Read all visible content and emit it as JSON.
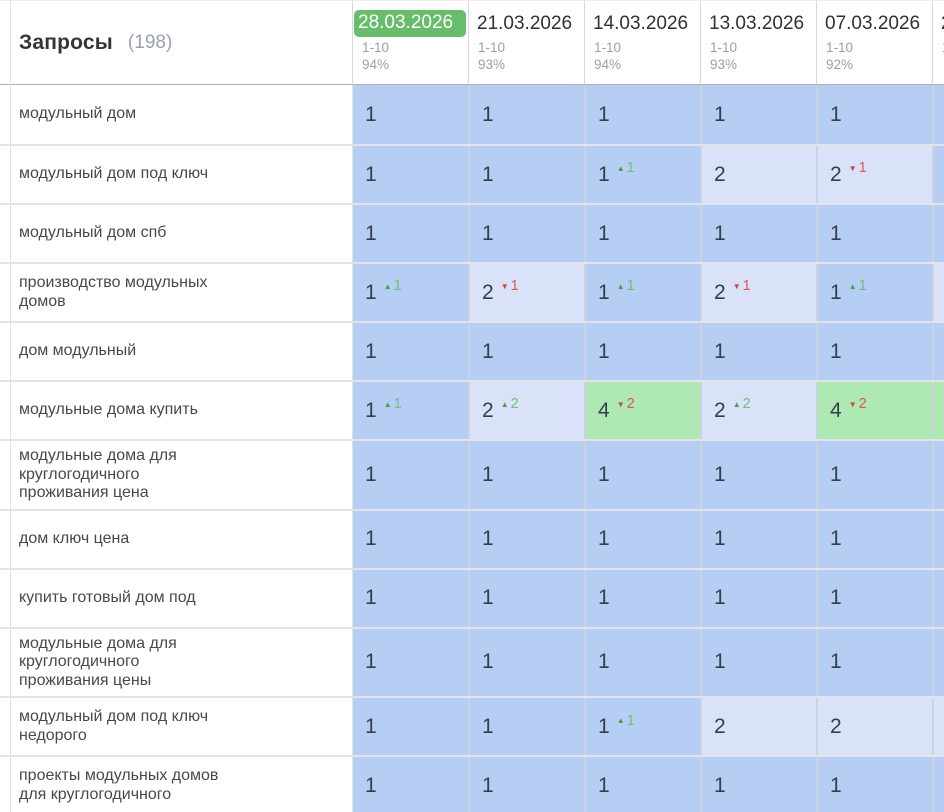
{
  "header": {
    "title": "Запросы",
    "count": "(198)",
    "columns": [
      {
        "date": "28.03.2026",
        "range": "1-10",
        "visibility": "94%",
        "selected": true
      },
      {
        "date": "21.03.2026",
        "range": "1-10",
        "visibility": "93%",
        "selected": false
      },
      {
        "date": "14.03.2026",
        "range": "1-10",
        "visibility": "94%",
        "selected": false
      },
      {
        "date": "13.03.2026",
        "range": "1-10",
        "visibility": "93%",
        "selected": false
      },
      {
        "date": "07.03.2026",
        "range": "1-10",
        "visibility": "92%",
        "selected": false
      },
      {
        "date": "2",
        "range": "1",
        "visibility": "",
        "selected": false
      }
    ]
  },
  "colors": {
    "selected_date_bg": "#67bd6b",
    "position_1_bg": "#b7cef4",
    "position_2_bg": "#d9e2f9",
    "position_4_bg": "#aee9b3",
    "up_change": "#43a047",
    "down_change": "#e2574e"
  },
  "rows": [
    {
      "keyword": "модульный дом",
      "cells": [
        {
          "value": "1",
          "tone": "blue",
          "change": null
        },
        {
          "value": "1",
          "tone": "blue",
          "change": null
        },
        {
          "value": "1",
          "tone": "blue",
          "change": null
        },
        {
          "value": "1",
          "tone": "blue",
          "change": null
        },
        {
          "value": "1",
          "tone": "blue",
          "change": null
        },
        {
          "value": "",
          "tone": "blue",
          "change": null
        }
      ]
    },
    {
      "keyword": "модульный дом под ключ",
      "cells": [
        {
          "value": "1",
          "tone": "blue",
          "change": null
        },
        {
          "value": "1",
          "tone": "blue",
          "change": null
        },
        {
          "value": "1",
          "tone": "blue",
          "change": {
            "dir": "up",
            "amount": "1"
          }
        },
        {
          "value": "2",
          "tone": "light",
          "change": null
        },
        {
          "value": "2",
          "tone": "light",
          "change": {
            "dir": "down",
            "amount": "1"
          }
        },
        {
          "value": "",
          "tone": "blue",
          "change": null
        }
      ]
    },
    {
      "keyword": "модульный дом спб",
      "cells": [
        {
          "value": "1",
          "tone": "blue",
          "change": null
        },
        {
          "value": "1",
          "tone": "blue",
          "change": null
        },
        {
          "value": "1",
          "tone": "blue",
          "change": null
        },
        {
          "value": "1",
          "tone": "blue",
          "change": null
        },
        {
          "value": "1",
          "tone": "blue",
          "change": null
        },
        {
          "value": "",
          "tone": "blue",
          "change": null
        }
      ]
    },
    {
      "keyword": "производство модульных\nдомов",
      "cells": [
        {
          "value": "1",
          "tone": "blue",
          "change": {
            "dir": "up",
            "amount": "1"
          }
        },
        {
          "value": "2",
          "tone": "light",
          "change": {
            "dir": "down",
            "amount": "1"
          }
        },
        {
          "value": "1",
          "tone": "blue",
          "change": {
            "dir": "up",
            "amount": "1"
          }
        },
        {
          "value": "2",
          "tone": "light",
          "change": {
            "dir": "down",
            "amount": "1"
          }
        },
        {
          "value": "1",
          "tone": "blue",
          "change": {
            "dir": "up",
            "amount": "1"
          }
        },
        {
          "value": "",
          "tone": "light",
          "change": null
        }
      ]
    },
    {
      "keyword": "дом модульный",
      "cells": [
        {
          "value": "1",
          "tone": "blue",
          "change": null
        },
        {
          "value": "1",
          "tone": "blue",
          "change": null
        },
        {
          "value": "1",
          "tone": "blue",
          "change": null
        },
        {
          "value": "1",
          "tone": "blue",
          "change": null
        },
        {
          "value": "1",
          "tone": "blue",
          "change": null
        },
        {
          "value": "",
          "tone": "blue",
          "change": null
        }
      ]
    },
    {
      "keyword": "модульные дома купить",
      "cells": [
        {
          "value": "1",
          "tone": "blue",
          "change": {
            "dir": "up",
            "amount": "1"
          }
        },
        {
          "value": "2",
          "tone": "light",
          "change": {
            "dir": "up",
            "amount": "2"
          }
        },
        {
          "value": "4",
          "tone": "green",
          "change": {
            "dir": "down",
            "amount": "2"
          }
        },
        {
          "value": "2",
          "tone": "light",
          "change": {
            "dir": "up",
            "amount": "2"
          }
        },
        {
          "value": "4",
          "tone": "green",
          "change": {
            "dir": "down",
            "amount": "2"
          }
        },
        {
          "value": "",
          "tone": "green",
          "change": null
        }
      ]
    },
    {
      "keyword": "модульные дома для\nкруглогодичного\nпроживания цена",
      "cells": [
        {
          "value": "1",
          "tone": "blue",
          "change": null
        },
        {
          "value": "1",
          "tone": "blue",
          "change": null
        },
        {
          "value": "1",
          "tone": "blue",
          "change": null
        },
        {
          "value": "1",
          "tone": "blue",
          "change": null
        },
        {
          "value": "1",
          "tone": "blue",
          "change": null
        },
        {
          "value": "",
          "tone": "blue",
          "change": null
        }
      ]
    },
    {
      "keyword": "дом ключ цена",
      "cells": [
        {
          "value": "1",
          "tone": "blue",
          "change": null
        },
        {
          "value": "1",
          "tone": "blue",
          "change": null
        },
        {
          "value": "1",
          "tone": "blue",
          "change": null
        },
        {
          "value": "1",
          "tone": "blue",
          "change": null
        },
        {
          "value": "1",
          "tone": "blue",
          "change": null
        },
        {
          "value": "",
          "tone": "blue",
          "change": null
        }
      ]
    },
    {
      "keyword": "купить готовый дом под",
      "cells": [
        {
          "value": "1",
          "tone": "blue",
          "change": null
        },
        {
          "value": "1",
          "tone": "blue",
          "change": null
        },
        {
          "value": "1",
          "tone": "blue",
          "change": null
        },
        {
          "value": "1",
          "tone": "blue",
          "change": null
        },
        {
          "value": "1",
          "tone": "blue",
          "change": null
        },
        {
          "value": "",
          "tone": "blue",
          "change": null
        }
      ]
    },
    {
      "keyword": "модульные дома для\nкруглогодичного\nпроживания цены",
      "cells": [
        {
          "value": "1",
          "tone": "blue",
          "change": null
        },
        {
          "value": "1",
          "tone": "blue",
          "change": null
        },
        {
          "value": "1",
          "tone": "blue",
          "change": null
        },
        {
          "value": "1",
          "tone": "blue",
          "change": null
        },
        {
          "value": "1",
          "tone": "blue",
          "change": null
        },
        {
          "value": "",
          "tone": "blue",
          "change": null
        }
      ]
    },
    {
      "keyword": "модульный дом под ключ\nнедорого",
      "cells": [
        {
          "value": "1",
          "tone": "blue",
          "change": null
        },
        {
          "value": "1",
          "tone": "blue",
          "change": null
        },
        {
          "value": "1",
          "tone": "blue",
          "change": {
            "dir": "up",
            "amount": "1"
          }
        },
        {
          "value": "2",
          "tone": "light",
          "change": null
        },
        {
          "value": "2",
          "tone": "light",
          "change": null
        },
        {
          "value": "",
          "tone": "light",
          "change": null
        }
      ]
    },
    {
      "keyword": "проекты модульных домов\nдля круглогодичного",
      "cells": [
        {
          "value": "1",
          "tone": "blue",
          "change": null
        },
        {
          "value": "1",
          "tone": "blue",
          "change": null
        },
        {
          "value": "1",
          "tone": "blue",
          "change": null
        },
        {
          "value": "1",
          "tone": "blue",
          "change": null
        },
        {
          "value": "1",
          "tone": "blue",
          "change": null
        },
        {
          "value": "",
          "tone": "blue",
          "change": null
        }
      ]
    },
    {
      "keyword": "",
      "partial": true,
      "cells": [
        {
          "value": "",
          "tone": "blue",
          "change": null
        },
        {
          "value": "",
          "tone": "blue",
          "change": null
        },
        {
          "value": "",
          "tone": "blue",
          "change": null
        },
        {
          "value": "",
          "tone": "blue",
          "change": null
        },
        {
          "value": "",
          "tone": "blue",
          "change": null
        },
        {
          "value": "",
          "tone": "blue",
          "change": null
        }
      ]
    }
  ]
}
